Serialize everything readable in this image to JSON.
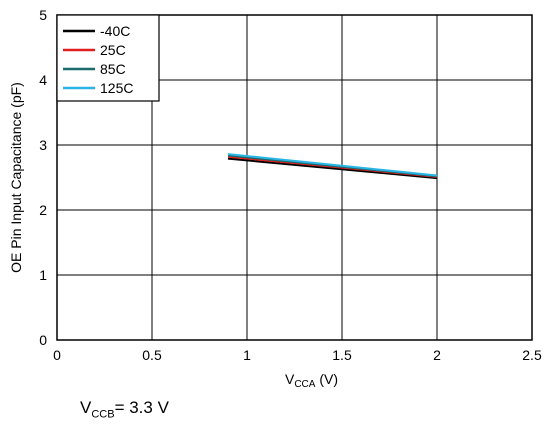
{
  "chart_data": {
    "type": "line",
    "title": "",
    "ylabel": "OE Pin Input Capacitance (pF)",
    "xlabel_main": "V",
    "xlabel_sub": "CCA",
    "xlabel_unit": " (V)",
    "xlim": [
      0,
      2.5
    ],
    "ylim": [
      0,
      5
    ],
    "xticks": [
      "0",
      "0.5",
      "1",
      "1.5",
      "2",
      "2.5"
    ],
    "yticks": [
      "0",
      "1",
      "2",
      "3",
      "4",
      "5"
    ],
    "grid": true,
    "legend_position": "top-left",
    "series": [
      {
        "name": "-40C",
        "color": "#000000",
        "x": [
          0.9,
          2.0
        ],
        "y": [
          2.79,
          2.49
        ]
      },
      {
        "name": "25C",
        "color": "#e02020",
        "x": [
          0.9,
          2.0
        ],
        "y": [
          2.82,
          2.51
        ]
      },
      {
        "name": "85C",
        "color": "#1a6b6b",
        "x": [
          0.9,
          2.0
        ],
        "y": [
          2.84,
          2.52
        ]
      },
      {
        "name": "125C",
        "color": "#29b6e6",
        "x": [
          0.9,
          2.0
        ],
        "y": [
          2.86,
          2.53
        ]
      }
    ]
  },
  "caption": {
    "main": "V",
    "sub": "CCB",
    "rest": "= 3.3 V"
  }
}
